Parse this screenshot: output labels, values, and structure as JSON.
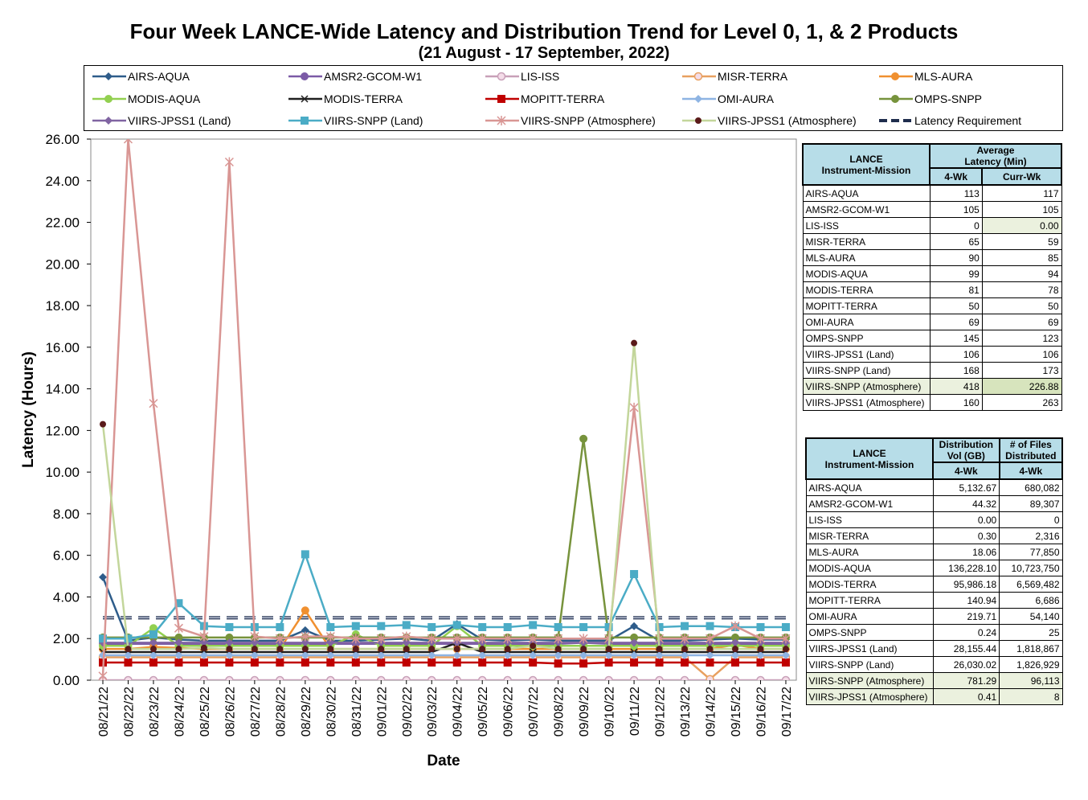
{
  "title": "Four Week LANCE-Wide Latency and Distribution Trend for Level 0, 1, & 2 Products",
  "subtitle": "(21  August   - 17  September,  2022)",
  "chart_data": {
    "type": "line",
    "ylabel": "Latency (Hours)",
    "xlabel": "Date",
    "ylim": [
      0,
      26
    ],
    "y_ticks": [
      "0.00",
      "2.00",
      "4.00",
      "6.00",
      "8.00",
      "10.00",
      "12.00",
      "14.00",
      "16.00",
      "18.00",
      "20.00",
      "22.00",
      "24.00",
      "26.00"
    ],
    "categories": [
      "08/21/22",
      "08/22/22",
      "08/23/22",
      "08/24/22",
      "08/25/22",
      "08/26/22",
      "08/27/22",
      "08/28/22",
      "08/29/22",
      "08/30/22",
      "08/31/22",
      "09/01/22",
      "09/02/22",
      "09/03/22",
      "09/04/22",
      "09/05/22",
      "09/06/22",
      "09/07/22",
      "09/08/22",
      "09/09/22",
      "09/10/22",
      "09/11/22",
      "09/12/22",
      "09/13/22",
      "09/14/22",
      "09/15/22",
      "09/16/22",
      "09/17/22"
    ],
    "grid": false,
    "legend_position": "top",
    "series": [
      {
        "name": "AIRS-AQUA",
        "color": "#2e5c8a",
        "marker": "diamond",
        "values": [
          4.95,
          1.9,
          2.05,
          1.95,
          1.9,
          1.9,
          1.9,
          1.9,
          2.4,
          1.9,
          1.9,
          1.95,
          2.0,
          1.9,
          2.7,
          1.95,
          1.9,
          1.95,
          1.9,
          1.9,
          1.9,
          2.6,
          1.9,
          1.9,
          1.95,
          2.0,
          1.95,
          1.95
        ]
      },
      {
        "name": "AMSR2-GCOM-W1",
        "color": "#7b5aa6",
        "marker": "circle",
        "values": [
          1.75,
          1.75,
          1.75,
          1.75,
          1.75,
          1.75,
          1.75,
          1.75,
          1.75,
          1.75,
          1.75,
          1.75,
          1.75,
          1.75,
          1.75,
          1.75,
          1.75,
          1.75,
          1.75,
          1.8,
          1.75,
          1.75,
          1.75,
          1.75,
          1.75,
          1.75,
          1.75,
          1.75
        ]
      },
      {
        "name": "LIS-ISS",
        "color": "#c8a0b8",
        "marker": "ocircle",
        "values": [
          0,
          0,
          0,
          0,
          0,
          0,
          0,
          0,
          0,
          0,
          0,
          0,
          0,
          0,
          0,
          0,
          0,
          0,
          0,
          0,
          0,
          0,
          0,
          0,
          0,
          0,
          0,
          0
        ]
      },
      {
        "name": "MISR-TERRA",
        "color": "#e8a060",
        "marker": "ocircle",
        "values": [
          1.1,
          1.1,
          1.1,
          1.1,
          1.1,
          1.1,
          1.1,
          1.1,
          1.1,
          1.1,
          1.1,
          1.1,
          1.1,
          1.1,
          1.1,
          1.1,
          1.1,
          1.1,
          1.1,
          1.1,
          1.1,
          1.1,
          1.1,
          1.1,
          0.05,
          1.1,
          1.1,
          1.1
        ]
      },
      {
        "name": "MLS-AURA",
        "color": "#f09030",
        "marker": "circle",
        "values": [
          1.5,
          1.5,
          1.6,
          1.55,
          1.5,
          1.5,
          1.5,
          1.5,
          3.35,
          1.5,
          1.5,
          1.5,
          1.5,
          1.5,
          1.5,
          1.5,
          1.5,
          1.5,
          1.5,
          1.5,
          1.5,
          1.5,
          1.5,
          1.5,
          1.5,
          1.7,
          1.5,
          1.5
        ]
      },
      {
        "name": "MODIS-AQUA",
        "color": "#92d050",
        "marker": "circle",
        "values": [
          1.65,
          1.65,
          2.5,
          1.65,
          1.65,
          1.65,
          1.65,
          1.65,
          1.65,
          1.65,
          2.2,
          1.65,
          1.65,
          1.65,
          2.6,
          1.65,
          1.65,
          1.65,
          1.65,
          1.65,
          1.65,
          1.65,
          1.65,
          1.65,
          1.65,
          1.65,
          1.65,
          1.65
        ]
      },
      {
        "name": "MODIS-TERRA",
        "color": "#202020",
        "marker": "x",
        "values": [
          1.35,
          1.35,
          1.35,
          1.35,
          1.35,
          1.35,
          1.35,
          1.35,
          1.35,
          1.35,
          1.35,
          1.35,
          1.35,
          1.35,
          1.8,
          1.35,
          1.35,
          1.35,
          1.35,
          1.35,
          1.35,
          1.35,
          1.35,
          1.35,
          1.35,
          1.35,
          1.35,
          1.35
        ]
      },
      {
        "name": "MOPITT-TERRA",
        "color": "#c00000",
        "marker": "square",
        "values": [
          0.85,
          0.85,
          0.85,
          0.85,
          0.85,
          0.85,
          0.85,
          0.85,
          0.85,
          0.85,
          0.85,
          0.85,
          0.85,
          0.85,
          0.85,
          0.85,
          0.85,
          0.85,
          0.8,
          0.8,
          0.85,
          0.85,
          0.85,
          0.85,
          0.85,
          0.85,
          0.85,
          0.85
        ]
      },
      {
        "name": "OMI-AURA",
        "color": "#8eb4e3",
        "marker": "diamond",
        "values": [
          1.2,
          1.2,
          1.2,
          1.2,
          1.2,
          1.2,
          1.2,
          1.2,
          1.2,
          1.2,
          1.2,
          1.2,
          1.2,
          1.2,
          1.2,
          1.2,
          1.2,
          1.2,
          1.2,
          1.2,
          1.2,
          1.2,
          1.2,
          1.2,
          1.2,
          1.2,
          1.2,
          1.2
        ]
      },
      {
        "name": "OMPS-SNPP",
        "color": "#77933c",
        "marker": "circle",
        "values": [
          2.05,
          2.05,
          2.05,
          2.05,
          2.05,
          2.05,
          2.05,
          2.05,
          2.05,
          2.05,
          2.05,
          2.05,
          2.05,
          2.05,
          2.05,
          2.05,
          2.05,
          2.05,
          2.05,
          11.6,
          2.05,
          2.05,
          2.05,
          2.05,
          2.05,
          2.05,
          2.05,
          2.05
        ]
      },
      {
        "name": "VIIRS-JPSS1 (Land)",
        "color": "#8064a2",
        "marker": "diamond",
        "values": [
          1.8,
          1.8,
          1.8,
          1.8,
          1.8,
          1.8,
          1.8,
          1.8,
          1.8,
          1.8,
          1.8,
          1.8,
          1.8,
          1.8,
          1.8,
          1.8,
          1.8,
          1.8,
          1.8,
          1.8,
          1.8,
          1.8,
          1.8,
          1.8,
          1.8,
          1.8,
          1.8,
          1.8
        ]
      },
      {
        "name": "VIIRS-SNPP (Land)",
        "color": "#4bacc6",
        "marker": "square",
        "values": [
          2.0,
          2.0,
          2.2,
          3.7,
          2.6,
          2.55,
          2.55,
          2.55,
          6.05,
          2.55,
          2.6,
          2.6,
          2.65,
          2.55,
          2.65,
          2.55,
          2.55,
          2.65,
          2.55,
          2.55,
          2.55,
          5.1,
          2.55,
          2.6,
          2.6,
          2.55,
          2.55,
          2.55
        ]
      },
      {
        "name": "VIIRS-SNPP (Atmosphere)",
        "color": "#d99694",
        "marker": "asterisk",
        "values": [
          0.2,
          26.0,
          13.3,
          2.5,
          2.1,
          24.9,
          2.1,
          2.0,
          2.1,
          2.1,
          2.0,
          2.0,
          2.1,
          2.0,
          2.0,
          2.0,
          2.0,
          2.0,
          2.0,
          2.0,
          2.0,
          13.1,
          2.0,
          2.0,
          2.0,
          2.6,
          2.0,
          2.0
        ]
      },
      {
        "name": "VIIRS-JPSS1 (Atmosphere)",
        "color": "#c3d69b",
        "marker": "dot",
        "values": [
          12.3,
          1.5,
          1.5,
          1.5,
          1.55,
          1.5,
          1.5,
          1.5,
          1.5,
          1.5,
          1.5,
          1.5,
          1.5,
          1.5,
          1.5,
          1.5,
          1.5,
          1.65,
          1.5,
          1.5,
          1.5,
          16.2,
          1.5,
          1.5,
          1.5,
          1.5,
          1.5,
          1.5
        ]
      },
      {
        "name": "Latency Requirement",
        "color": "#1f2d4d",
        "marker": "none",
        "dashed": true,
        "values": [
          3,
          3,
          3,
          3,
          3,
          3,
          3,
          3,
          3,
          3,
          3,
          3,
          3,
          3,
          3,
          3,
          3,
          3,
          3,
          3,
          3,
          3,
          3,
          3,
          3,
          3,
          3,
          3
        ]
      }
    ]
  },
  "latency_table": {
    "h1": "LANCE",
    "h1b": "Instrument-Mission",
    "h2": "Average",
    "h2b": "Latency (Min)",
    "c1": "4-Wk",
    "c2": "Curr-Wk",
    "rows": [
      {
        "name": "AIRS-AQUA",
        "v1": "113",
        "v2": "117"
      },
      {
        "name": "AMSR2-GCOM-W1",
        "v1": "105",
        "v2": "105"
      },
      {
        "name": "LIS-ISS",
        "v1": "0",
        "v2": "0.00"
      },
      {
        "name": "MISR-TERRA",
        "v1": "65",
        "v2": "59"
      },
      {
        "name": "MLS-AURA",
        "v1": "90",
        "v2": "85"
      },
      {
        "name": "MODIS-AQUA",
        "v1": "99",
        "v2": "94"
      },
      {
        "name": "MODIS-TERRA",
        "v1": "81",
        "v2": "78"
      },
      {
        "name": "MOPITT-TERRA",
        "v1": "50",
        "v2": "50"
      },
      {
        "name": "OMI-AURA",
        "v1": "69",
        "v2": "69"
      },
      {
        "name": "OMPS-SNPP",
        "v1": "145",
        "v2": "123"
      },
      {
        "name": "VIIRS-JPSS1 (Land)",
        "v1": "106",
        "v2": "106"
      },
      {
        "name": "VIIRS-SNPP (Land)",
        "v1": "168",
        "v2": "173"
      },
      {
        "name": "VIIRS-SNPP (Atmosphere)",
        "v1": "418",
        "v2": "226.88"
      },
      {
        "name": "VIIRS-JPSS1 (Atmosphere)",
        "v1": "160",
        "v2": "263"
      }
    ]
  },
  "dist_table": {
    "h1": "LANCE",
    "h1b": "Instrument-Mission",
    "h2": "Distribution",
    "h2b": "Vol (GB)",
    "h3": "# of Files",
    "h3b": "Distributed",
    "c1": "4-Wk",
    "c2": "4-Wk",
    "rows": [
      {
        "name": "AIRS-AQUA",
        "v1": "5,132.67",
        "v2": "680,082"
      },
      {
        "name": "AMSR2-GCOM-W1",
        "v1": "44.32",
        "v2": "89,307"
      },
      {
        "name": "LIS-ISS",
        "v1": "0.00",
        "v2": "0"
      },
      {
        "name": "MISR-TERRA",
        "v1": "0.30",
        "v2": "2,316"
      },
      {
        "name": "MLS-AURA",
        "v1": "18.06",
        "v2": "77,850"
      },
      {
        "name": "MODIS-AQUA",
        "v1": "136,228.10",
        "v2": "10,723,750"
      },
      {
        "name": "MODIS-TERRA",
        "v1": "95,986.18",
        "v2": "6,569,482"
      },
      {
        "name": "MOPITT-TERRA",
        "v1": "140.94",
        "v2": "6,686"
      },
      {
        "name": "OMI-AURA",
        "v1": "219.71",
        "v2": "54,140"
      },
      {
        "name": "OMPS-SNPP",
        "v1": "0.24",
        "v2": "25"
      },
      {
        "name": "VIIRS-JPSS1 (Land)",
        "v1": "28,155.44",
        "v2": "1,818,867"
      },
      {
        "name": "VIIRS-SNPP (Land)",
        "v1": "26,030.02",
        "v2": "1,826,929"
      },
      {
        "name": "VIIRS-SNPP (Atmosphere)",
        "v1": "781.29",
        "v2": "96,113"
      },
      {
        "name": "VIIRS-JPSS1 (Atmosphere)",
        "v1": "0.41",
        "v2": "8"
      }
    ]
  }
}
